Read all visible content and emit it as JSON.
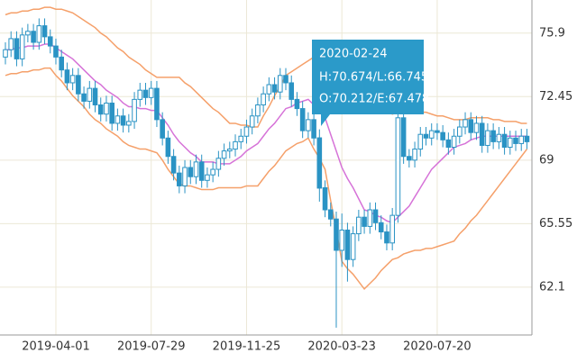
{
  "chart_data": {
    "type": "candlestick",
    "categories": [
      null,
      null,
      null,
      null,
      null,
      null,
      null,
      null,
      null,
      "2019-04-01",
      null,
      null,
      null,
      null,
      null,
      null,
      null,
      null,
      null,
      null,
      null,
      null,
      null,
      null,
      null,
      null,
      "2019-07-29",
      null,
      null,
      null,
      null,
      null,
      null,
      null,
      null,
      null,
      null,
      null,
      null,
      null,
      null,
      null,
      null,
      "2019-11-25",
      null,
      null,
      null,
      null,
      null,
      null,
      null,
      null,
      null,
      null,
      null,
      null,
      null,
      null,
      null,
      null,
      "2020-03-23",
      null,
      null,
      null,
      null,
      null,
      null,
      null,
      null,
      null,
      null,
      null,
      null,
      null,
      null,
      null,
      null,
      "2020-07-20",
      null,
      null,
      null,
      null,
      null,
      null,
      null,
      null,
      null,
      null,
      null,
      null,
      null,
      null,
      null,
      null
    ],
    "open": [
      74.6,
      75.0,
      75.6,
      74.5,
      75.8,
      76.0,
      75.4,
      76.3,
      75.7,
      75.2,
      74.6,
      73.9,
      73.2,
      73.6,
      72.6,
      72.2,
      72.9,
      72.0,
      71.5,
      72.1,
      71.0,
      71.4,
      70.9,
      71.1,
      72.3,
      72.8,
      72.4,
      72.9,
      71.2,
      70.2,
      69.2,
      68.3,
      67.6,
      68.6,
      68.1,
      68.9,
      67.9,
      68.2,
      68.5,
      69.1,
      69.5,
      69.6,
      70.0,
      70.3,
      70.8,
      71.4,
      72.0,
      72.6,
      73.1,
      72.7,
      73.6,
      73.2,
      72.3,
      71.8,
      70.6,
      71.2,
      70.212,
      67.5,
      66.3,
      65.8,
      64.1,
      65.2,
      63.6,
      65.0,
      65.9,
      65.4,
      66.3,
      65.6,
      65.1,
      64.5,
      66.0,
      71.3,
      69.2,
      69.0,
      69.6,
      70.4,
      70.2,
      70.6,
      70.5,
      70.1,
      69.7,
      70.3,
      70.8,
      71.2,
      70.5,
      71.0,
      69.8,
      70.6,
      70.0,
      70.4,
      69.7,
      70.2,
      69.9,
      70.3
    ],
    "high": [
      75.4,
      76.0,
      76.0,
      76.2,
      76.4,
      76.4,
      76.7,
      76.7,
      76.1,
      75.6,
      75.0,
      74.3,
      74.0,
      74.0,
      73.0,
      73.3,
      73.3,
      72.4,
      72.5,
      72.5,
      71.8,
      71.8,
      71.5,
      72.7,
      73.2,
      73.2,
      73.3,
      73.3,
      71.6,
      70.6,
      69.6,
      68.7,
      69.0,
      69.0,
      69.3,
      69.3,
      68.6,
      68.9,
      69.5,
      69.9,
      70.0,
      70.4,
      70.7,
      71.2,
      71.8,
      72.4,
      73.0,
      73.5,
      73.5,
      74.0,
      74.0,
      73.6,
      72.7,
      72.2,
      71.6,
      71.6,
      70.674,
      67.9,
      66.7,
      66.2,
      66.1,
      65.6,
      65.4,
      66.3,
      66.3,
      66.7,
      66.7,
      66.0,
      65.5,
      66.4,
      71.7,
      71.7,
      69.6,
      70.0,
      70.8,
      70.8,
      71.0,
      71.0,
      70.9,
      70.5,
      70.7,
      71.2,
      71.6,
      71.6,
      71.4,
      71.4,
      71.0,
      71.0,
      70.8,
      70.8,
      70.6,
      70.6,
      70.7,
      70.7
    ],
    "low": [
      74.2,
      74.6,
      74.1,
      74.1,
      75.4,
      75.0,
      75.0,
      75.3,
      74.8,
      74.2,
      73.5,
      72.8,
      72.8,
      72.2,
      71.8,
      71.8,
      71.6,
      71.1,
      71.1,
      70.6,
      70.6,
      70.5,
      70.5,
      70.7,
      71.9,
      72.0,
      72.0,
      70.8,
      69.8,
      68.8,
      67.9,
      67.2,
      67.2,
      67.7,
      67.7,
      67.5,
      67.5,
      67.8,
      68.1,
      68.7,
      69.1,
      69.2,
      69.6,
      69.9,
      70.4,
      71.0,
      71.6,
      72.2,
      72.3,
      72.3,
      72.8,
      71.9,
      71.4,
      70.2,
      70.2,
      69.8,
      66.745,
      65.9,
      65.4,
      59.9,
      63.2,
      62.4,
      63.2,
      64.6,
      65.0,
      65.0,
      65.2,
      64.7,
      64.1,
      64.1,
      65.6,
      68.8,
      68.6,
      68.6,
      69.2,
      69.8,
      69.8,
      70.1,
      69.7,
      69.3,
      69.3,
      69.9,
      70.4,
      70.1,
      70.1,
      69.4,
      69.4,
      69.6,
      69.6,
      69.3,
      69.3,
      69.5,
      69.5,
      69.6
    ],
    "close": [
      75.0,
      75.6,
      74.5,
      75.8,
      76.0,
      75.4,
      76.3,
      75.7,
      75.2,
      74.6,
      73.9,
      73.2,
      73.6,
      72.6,
      72.2,
      72.9,
      72.0,
      71.5,
      72.1,
      71.0,
      71.4,
      70.9,
      71.1,
      72.3,
      72.8,
      72.4,
      72.9,
      71.2,
      70.2,
      69.2,
      68.3,
      67.6,
      68.6,
      68.1,
      68.9,
      67.9,
      68.2,
      68.5,
      69.1,
      69.5,
      69.6,
      70.0,
      70.3,
      70.8,
      71.4,
      72.0,
      72.6,
      73.1,
      72.7,
      73.6,
      73.2,
      72.3,
      71.8,
      70.6,
      71.2,
      70.2,
      67.478,
      66.3,
      65.8,
      64.1,
      65.2,
      63.6,
      65.0,
      65.9,
      65.4,
      66.3,
      65.6,
      65.1,
      64.5,
      66.0,
      71.3,
      69.2,
      69.0,
      69.6,
      70.4,
      70.2,
      70.6,
      70.5,
      70.1,
      69.7,
      70.3,
      70.8,
      71.2,
      70.5,
      71.0,
      69.8,
      70.6,
      70.0,
      70.4,
      69.7,
      70.2,
      69.9,
      70.3,
      70.0
    ],
    "color": "#2a93c4",
    "bands": [
      {
        "color": "#f5a06a",
        "values": [
          76.9,
          77.0,
          77.0,
          77.1,
          77.1,
          77.2,
          77.2,
          77.3,
          77.3,
          77.2,
          77.2,
          77.1,
          77.0,
          76.8,
          76.6,
          76.4,
          76.2,
          75.9,
          75.7,
          75.4,
          75.1,
          74.9,
          74.6,
          74.4,
          74.2,
          73.9,
          73.7,
          73.5,
          73.5,
          73.5,
          73.5,
          73.5,
          73.2,
          73.0,
          72.7,
          72.4,
          72.1,
          71.8,
          71.6,
          71.3,
          71.0,
          71.0,
          70.9,
          70.9,
          70.8,
          70.8,
          71.4,
          71.9,
          72.5,
          73.0,
          73.6,
          73.8,
          74.0,
          74.2,
          74.4,
          74.6,
          74.8,
          75.0,
          74.9,
          74.7,
          74.6,
          74.3,
          74.0,
          73.7,
          73.4,
          73.0,
          72.6,
          72.3,
          71.9,
          71.5,
          71.6,
          71.6,
          71.7,
          71.7,
          71.6,
          71.6,
          71.5,
          71.4,
          71.4,
          71.3,
          71.2,
          71.2,
          71.2,
          71.3,
          71.3,
          71.3,
          71.3,
          71.2,
          71.2,
          71.1,
          71.1,
          71.1,
          71.0,
          71.0
        ]
      },
      {
        "color": "#d673d8",
        "values": [
          75.0,
          75.0,
          75.1,
          75.1,
          75.2,
          75.2,
          75.2,
          75.3,
          75.3,
          75.1,
          74.9,
          74.7,
          74.5,
          74.2,
          73.9,
          73.6,
          73.3,
          73.1,
          72.8,
          72.6,
          72.4,
          72.1,
          71.9,
          71.9,
          71.8,
          71.8,
          71.7,
          71.7,
          71.3,
          70.9,
          70.4,
          70.0,
          69.7,
          69.4,
          69.2,
          68.9,
          68.9,
          68.9,
          68.8,
          68.8,
          68.8,
          69.0,
          69.2,
          69.5,
          69.7,
          69.9,
          70.3,
          70.7,
          71.0,
          71.4,
          71.8,
          71.9,
          72.1,
          72.2,
          72.3,
          72.0,
          71.6,
          71.3,
          70.4,
          69.5,
          68.6,
          68.0,
          67.5,
          66.9,
          66.3,
          66.2,
          66.0,
          65.9,
          65.7,
          65.6,
          65.9,
          66.2,
          66.5,
          67.0,
          67.5,
          68.0,
          68.5,
          68.8,
          69.1,
          69.4,
          69.7,
          69.8,
          69.9,
          70.1,
          70.2,
          70.3,
          70.3,
          70.3,
          70.3,
          70.3,
          70.3,
          70.3,
          70.3,
          70.3
        ]
      },
      {
        "color": "#f5a06a",
        "values": [
          73.6,
          73.7,
          73.7,
          73.8,
          73.8,
          73.9,
          73.9,
          74.0,
          74.0,
          73.6,
          73.3,
          72.9,
          72.5,
          72.2,
          71.9,
          71.5,
          71.2,
          71.0,
          70.7,
          70.5,
          70.3,
          70.0,
          69.8,
          69.7,
          69.6,
          69.6,
          69.5,
          69.4,
          69.0,
          68.5,
          68.1,
          67.7,
          67.6,
          67.6,
          67.5,
          67.4,
          67.4,
          67.4,
          67.5,
          67.5,
          67.5,
          67.5,
          67.5,
          67.6,
          67.6,
          67.6,
          68.0,
          68.4,
          68.7,
          69.1,
          69.5,
          69.7,
          69.9,
          70.0,
          70.2,
          69.6,
          69.1,
          68.5,
          66.8,
          65.2,
          63.5,
          63.1,
          62.8,
          62.4,
          62.0,
          62.3,
          62.6,
          63.0,
          63.3,
          63.6,
          63.7,
          63.9,
          64.0,
          64.1,
          64.1,
          64.2,
          64.2,
          64.3,
          64.4,
          64.5,
          64.6,
          65.0,
          65.3,
          65.7,
          66.0,
          66.4,
          66.8,
          67.2,
          67.6,
          68.0,
          68.4,
          68.8,
          69.2,
          69.6
        ]
      }
    ],
    "ylim": [
      59.5,
      77.7
    ],
    "yticks": [
      62.1,
      65.55,
      69,
      72.45,
      75.9
    ],
    "grid": true,
    "tooltip": {
      "title": "2020-02-24",
      "lines": [
        "H:70.674/L:66.745",
        "O:70.212/E:67.478"
      ]
    }
  }
}
